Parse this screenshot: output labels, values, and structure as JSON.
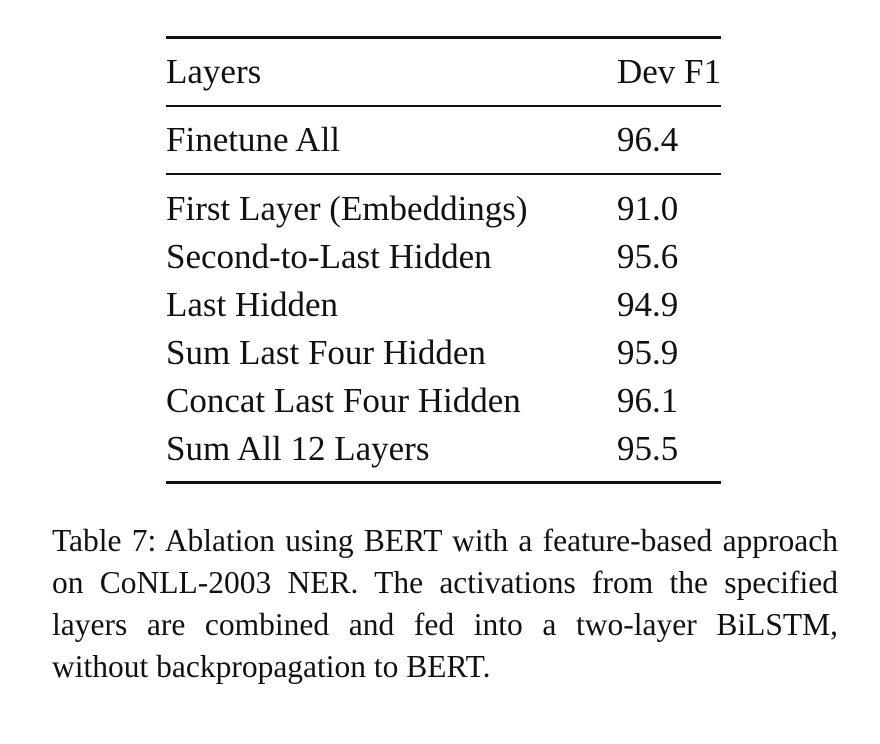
{
  "table": {
    "header": {
      "col_layers": "Layers",
      "col_dev_f1": "Dev F1"
    },
    "finetune": {
      "label": "Finetune All",
      "value": "96.4"
    },
    "rows": [
      {
        "label": "First Layer (Embeddings)",
        "value": "91.0"
      },
      {
        "label": "Second-to-Last Hidden",
        "value": "95.6"
      },
      {
        "label": "Last Hidden",
        "value": "94.9"
      },
      {
        "label": "Sum Last Four Hidden",
        "value": "95.9"
      },
      {
        "label": "Concat Last Four Hidden",
        "value": "96.1"
      },
      {
        "label": "Sum All 12 Layers",
        "value": "95.5"
      }
    ]
  },
  "caption": "Table 7: Ablation using BERT with a feature-based approach on CoNLL-2003 NER. The activations from the specified layers are combined and fed into a two-layer BiLSTM, without backpropagation to BERT."
}
